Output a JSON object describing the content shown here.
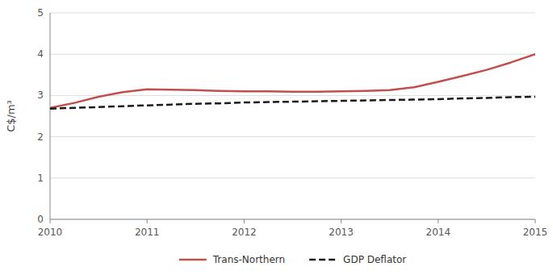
{
  "chart_data": {
    "type": "line",
    "y_label": "C$/m³",
    "x": [
      2010,
      2010.25,
      2010.5,
      2010.75,
      2011,
      2011.25,
      2011.5,
      2011.75,
      2012,
      2012.25,
      2012.5,
      2012.75,
      2013,
      2013.25,
      2013.5,
      2013.75,
      2014,
      2014.25,
      2014.5,
      2014.75,
      2015
    ],
    "series": [
      {
        "name": "Trans-Northern",
        "color": "#C0504D",
        "line_style": "solid",
        "values": [
          2.7,
          2.82,
          2.97,
          3.08,
          3.15,
          3.14,
          3.13,
          3.11,
          3.1,
          3.1,
          3.09,
          3.09,
          3.1,
          3.11,
          3.13,
          3.2,
          3.33,
          3.47,
          3.62,
          3.8,
          4.0
        ]
      },
      {
        "name": "GDP Deflator",
        "color": "#1A1A1A",
        "line_style": "dashed",
        "values": [
          2.68,
          2.7,
          2.72,
          2.74,
          2.76,
          2.78,
          2.8,
          2.81,
          2.83,
          2.84,
          2.85,
          2.86,
          2.87,
          2.88,
          2.89,
          2.9,
          2.91,
          2.93,
          2.94,
          2.96,
          2.97
        ]
      }
    ],
    "xlim": [
      2010,
      2015
    ],
    "ylim": [
      0,
      5
    ],
    "xticks": [
      2010,
      2011,
      2012,
      2013,
      2014,
      2015
    ],
    "yticks": [
      0,
      1,
      2,
      3,
      4,
      5
    ],
    "grid": "y",
    "legend": "bottom"
  }
}
